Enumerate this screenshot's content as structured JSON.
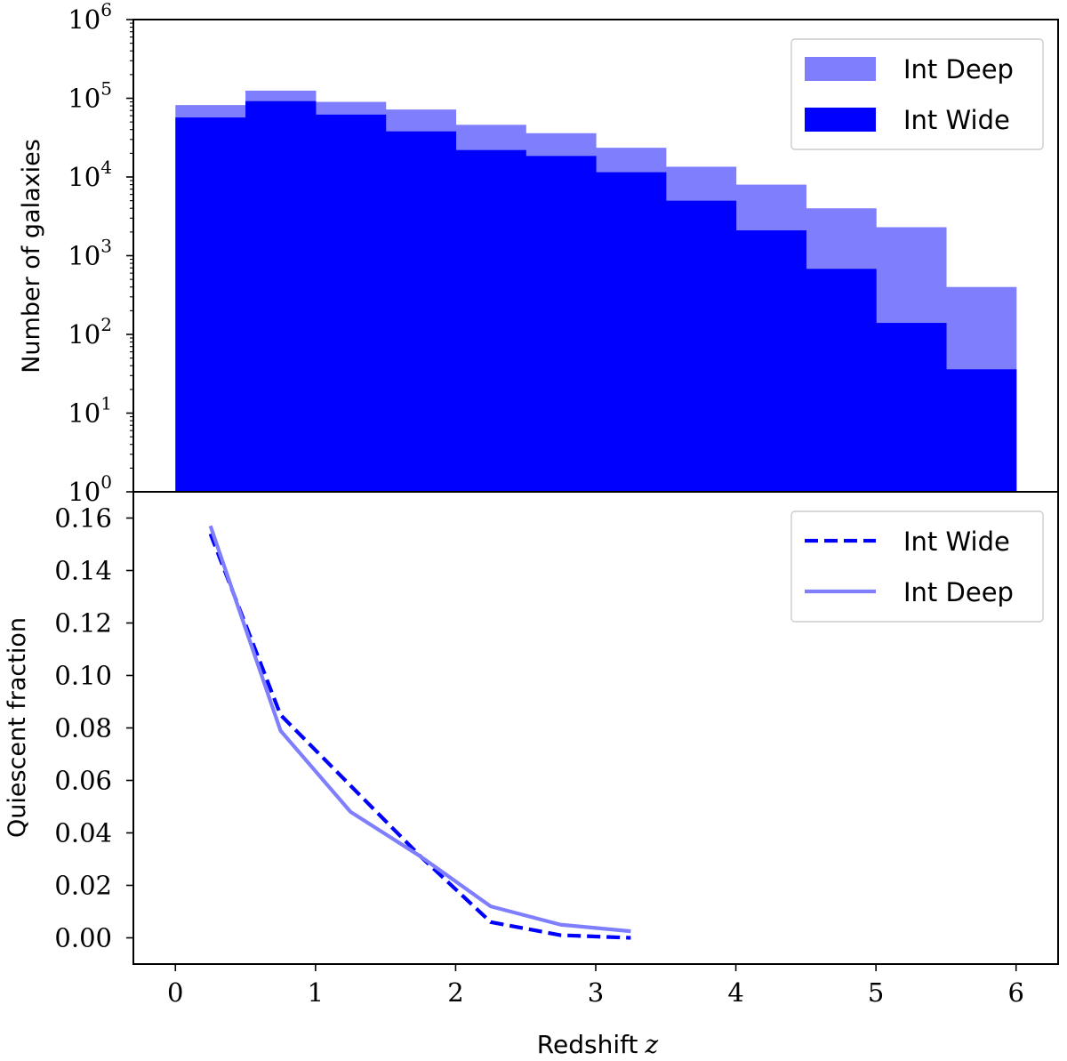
{
  "chart_data": [
    {
      "type": "histogram",
      "title": "",
      "xlabel": "",
      "ylabel": "Number of galaxies",
      "yscale": "log",
      "xlim": [
        -0.3,
        6.3
      ],
      "ylim_exponents": [
        0,
        6
      ],
      "ytick_base": "10",
      "yticks_exponents": [
        "0",
        "1",
        "2",
        "3",
        "4",
        "5",
        "6"
      ],
      "bin_edges": [
        0,
        0.5,
        1,
        1.5,
        2,
        2.5,
        3,
        3.5,
        4,
        4.5,
        5,
        5.5,
        6
      ],
      "series": [
        {
          "name": "Int Deep",
          "color": "#7f7ffe",
          "values": [
            82000,
            125000,
            90000,
            72000,
            46000,
            36000,
            23500,
            13500,
            8000,
            4000,
            2300,
            400
          ]
        },
        {
          "name": "Int Wide",
          "color": "#0000fe",
          "values": [
            57000,
            92000,
            62000,
            38000,
            22000,
            18500,
            11500,
            5000,
            2100,
            680,
            140,
            36
          ]
        }
      ],
      "legend": {
        "position": "top-right",
        "entries": [
          "Int Deep",
          "Int Wide"
        ]
      }
    },
    {
      "type": "line",
      "title": "",
      "xlabel": "Redshift",
      "xlabel_var": "z",
      "ylabel": "Quiescent fraction",
      "xlim": [
        -0.3,
        6.3
      ],
      "ylim": [
        -0.01,
        0.17
      ],
      "xticks": [
        "0",
        "1",
        "2",
        "3",
        "4",
        "5",
        "6"
      ],
      "yticks": [
        "0.00",
        "0.02",
        "0.04",
        "0.06",
        "0.08",
        "0.10",
        "0.12",
        "0.14",
        "0.16"
      ],
      "series": [
        {
          "name": "Int Wide",
          "color": "#0000fe",
          "style": "dashed",
          "x": [
            0.25,
            0.75,
            1.25,
            1.75,
            2.25,
            2.75,
            3.25
          ],
          "y": [
            0.154,
            0.085,
            0.058,
            0.031,
            0.006,
            0.001,
            0.0
          ]
        },
        {
          "name": "Int Deep",
          "color": "#7f7ffe",
          "style": "solid",
          "x": [
            0.25,
            0.75,
            1.25,
            1.75,
            2.25,
            2.75,
            3.25
          ],
          "y": [
            0.157,
            0.079,
            0.048,
            0.031,
            0.012,
            0.005,
            0.0025
          ]
        }
      ],
      "legend": {
        "position": "top-right",
        "entries": [
          "Int Wide",
          "Int Deep"
        ]
      }
    }
  ]
}
